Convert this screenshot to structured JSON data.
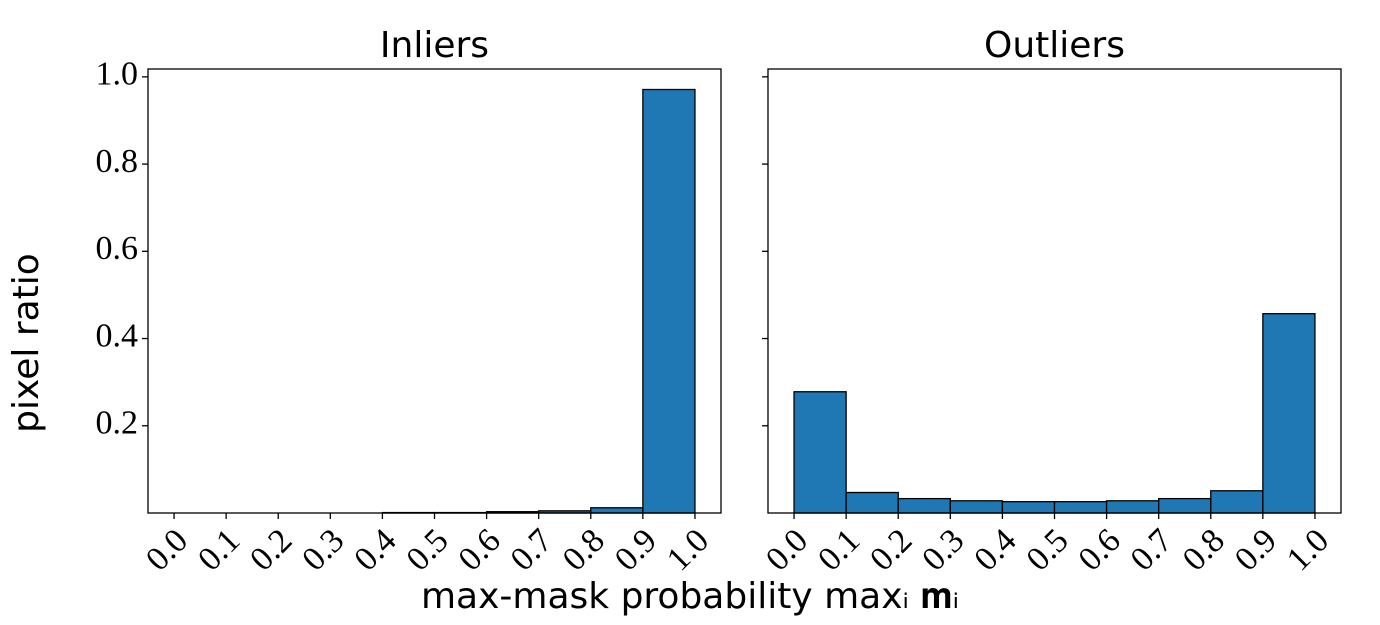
{
  "chart_data": [
    {
      "type": "histogram",
      "title": "Inliers",
      "bins": [
        0,
        0.1,
        0.2,
        0.3,
        0.4,
        0.5,
        0.6,
        0.7,
        0.8,
        0.9,
        1
      ],
      "values": [
        0,
        0,
        0,
        0,
        0.001,
        0.001,
        0.003,
        0.005,
        0.012,
        0.971
      ],
      "color": "#1f77b4",
      "edgecolor": "#000000",
      "xlim": [
        -0.05,
        1.05
      ],
      "xticks": [
        {
          "value": 0,
          "label": "0.0"
        },
        0.1,
        0.2,
        0.3,
        0.4,
        0.5,
        0.6,
        0.7,
        0.8,
        0.9,
        {
          "value": 1,
          "label": "1.0"
        }
      ],
      "ylim": [
        0,
        1.018
      ],
      "yticks": [
        0.2,
        0.4,
        0.6,
        0.8,
        {
          "value": 1,
          "label": "1.0"
        }
      ]
    },
    {
      "type": "histogram",
      "title": "Outliers",
      "bins": [
        0,
        0.1,
        0.2,
        0.3,
        0.4,
        0.5,
        0.6,
        0.7,
        0.8,
        0.9,
        1
      ],
      "values": [
        0.278,
        0.047,
        0.033,
        0.028,
        0.026,
        0.026,
        0.028,
        0.033,
        0.051,
        0.457
      ],
      "color": "#1f77b4",
      "edgecolor": "#000000",
      "xlim": [
        -0.05,
        1.05
      ],
      "xticks": [
        {
          "value": 0,
          "label": "0.0"
        },
        0.1,
        0.2,
        0.3,
        0.4,
        0.5,
        0.6,
        0.7,
        0.8,
        0.9,
        {
          "value": 1,
          "label": "1.0"
        }
      ],
      "ylim": [
        0,
        1.018
      ],
      "yticks": [
        0.2,
        0.4,
        0.6,
        0.8,
        1
      ]
    }
  ],
  "shared": {
    "xlabel": "max-mask probability maxᵢ 𝐦ᵢ",
    "ylabel": "pixel ratio"
  }
}
